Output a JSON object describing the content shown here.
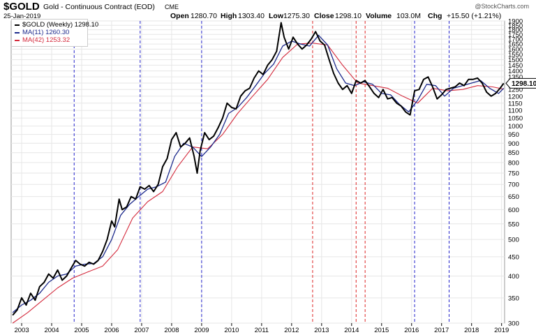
{
  "header": {
    "symbol": "$GOLD",
    "name": "Gold - Continuous Contract (EOD)",
    "exchange": "CME",
    "date": "25-Jan-2019",
    "watermark": "@StockCharts.com",
    "open_label": "Open",
    "open": "1280.70",
    "high_label": "High",
    "high": "1303.40",
    "low_label": "Low",
    "low": "1275.30",
    "close_label": "Close",
    "close": "1298.10",
    "volume_label": "Volume",
    "volume": "103.0M",
    "chg_label": "Chg",
    "chg": "+15.50 (+1.21%)"
  },
  "legend": {
    "price": "$GOLD (Weekly) 1298.10",
    "ma11": "MA(11) 1260.30",
    "ma42": "MA(42) 1253.32"
  },
  "last_price_tag": "1298.10",
  "colors": {
    "price": "#000000",
    "ma11": "#1c2a8c",
    "ma42": "#d42a3c",
    "vline_blue": "#2222cc",
    "vline_red": "#dd2222",
    "grid": "#e6e6e6"
  },
  "chart_data": {
    "type": "line",
    "scale": "log",
    "ylim": [
      300,
      1900
    ],
    "xlim": [
      2002.65,
      2019.1
    ],
    "y_ticks": [
      300,
      350,
      400,
      450,
      500,
      550,
      600,
      650,
      700,
      750,
      800,
      850,
      900,
      950,
      1000,
      1050,
      1100,
      1150,
      1200,
      1250,
      1300,
      1350,
      1400,
      1450,
      1500,
      1550,
      1600,
      1650,
      1700,
      1750,
      1800,
      1850,
      1900
    ],
    "x_ticks": [
      {
        "label": "2003",
        "x": 2003.0
      },
      {
        "label": "2004",
        "x": 2004.0
      },
      {
        "label": "2005",
        "x": 2005.0
      },
      {
        "label": "2006",
        "x": 2006.0
      },
      {
        "label": "2007",
        "x": 2007.0
      },
      {
        "label": "2008",
        "x": 2008.0
      },
      {
        "label": "2009",
        "x": 2009.0
      },
      {
        "label": "2010",
        "x": 2010.0
      },
      {
        "label": "2011",
        "x": 2011.0
      },
      {
        "label": "2012",
        "x": 2012.0
      },
      {
        "label": "2013",
        "x": 2013.0
      },
      {
        "label": "2014",
        "x": 2014.0
      },
      {
        "label": "2015",
        "x": 2015.0
      },
      {
        "label": "2016",
        "x": 2016.0
      },
      {
        "label": "2017",
        "x": 2017.0
      },
      {
        "label": "2018",
        "x": 2018.0
      },
      {
        "label": "2019",
        "x": 2019.0
      }
    ],
    "vlines_blue": [
      2004.75,
      2006.95,
      2009.0,
      2016.1,
      2017.25
    ],
    "vlines_red": [
      2012.7,
      2014.15,
      2014.45
    ],
    "series": [
      {
        "key": "price",
        "x": [
          2002.7,
          2002.85,
          2003.0,
          2003.15,
          2003.3,
          2003.45,
          2003.6,
          2003.75,
          2003.9,
          2004.05,
          2004.2,
          2004.35,
          2004.5,
          2004.65,
          2004.8,
          2004.95,
          2005.1,
          2005.25,
          2005.4,
          2005.55,
          2005.7,
          2005.85,
          2006.0,
          2006.1,
          2006.25,
          2006.35,
          2006.5,
          2006.65,
          2006.8,
          2006.95,
          2007.1,
          2007.25,
          2007.4,
          2007.55,
          2007.7,
          2007.85,
          2008.0,
          2008.15,
          2008.3,
          2008.45,
          2008.6,
          2008.75,
          2008.85,
          2008.95,
          2009.1,
          2009.25,
          2009.4,
          2009.55,
          2009.7,
          2009.85,
          2010.0,
          2010.15,
          2010.3,
          2010.45,
          2010.6,
          2010.75,
          2010.9,
          2011.05,
          2011.2,
          2011.35,
          2011.5,
          2011.65,
          2011.75,
          2011.9,
          2012.05,
          2012.2,
          2012.35,
          2012.5,
          2012.65,
          2012.8,
          2012.95,
          2013.1,
          2013.25,
          2013.4,
          2013.55,
          2013.7,
          2013.85,
          2014.0,
          2014.15,
          2014.3,
          2014.45,
          2014.6,
          2014.75,
          2014.9,
          2015.05,
          2015.2,
          2015.35,
          2015.5,
          2015.65,
          2015.8,
          2015.95,
          2016.1,
          2016.25,
          2016.4,
          2016.55,
          2016.7,
          2016.85,
          2017.0,
          2017.15,
          2017.3,
          2017.45,
          2017.6,
          2017.75,
          2017.9,
          2018.05,
          2018.2,
          2018.35,
          2018.5,
          2018.65,
          2018.8,
          2018.95,
          2019.07
        ],
        "values": [
          315,
          325,
          350,
          335,
          360,
          345,
          375,
          385,
          405,
          395,
          415,
          390,
          400,
          420,
          440,
          430,
          425,
          435,
          430,
          440,
          465,
          500,
          560,
          540,
          640,
          600,
          610,
          650,
          640,
          690,
          680,
          695,
          670,
          700,
          780,
          820,
          920,
          960,
          880,
          900,
          930,
          830,
          750,
          860,
          960,
          920,
          940,
          990,
          1050,
          1150,
          1120,
          1110,
          1200,
          1240,
          1260,
          1340,
          1400,
          1370,
          1450,
          1500,
          1580,
          1880,
          1720,
          1600,
          1720,
          1650,
          1600,
          1640,
          1700,
          1780,
          1680,
          1640,
          1500,
          1380,
          1300,
          1250,
          1280,
          1220,
          1320,
          1300,
          1320,
          1270,
          1220,
          1190,
          1250,
          1180,
          1190,
          1150,
          1130,
          1090,
          1070,
          1240,
          1250,
          1330,
          1350,
          1270,
          1180,
          1210,
          1250,
          1260,
          1270,
          1300,
          1280,
          1330,
          1330,
          1340,
          1300,
          1230,
          1200,
          1220,
          1260,
          1298
        ]
      },
      {
        "key": "ma11",
        "x": [
          2002.7,
          2003.0,
          2003.3,
          2003.6,
          2003.9,
          2004.2,
          2004.5,
          2004.8,
          2005.1,
          2005.4,
          2005.7,
          2006.0,
          2006.3,
          2006.6,
          2006.9,
          2007.2,
          2007.5,
          2007.8,
          2008.1,
          2008.4,
          2008.7,
          2009.0,
          2009.3,
          2009.6,
          2009.9,
          2010.2,
          2010.5,
          2010.8,
          2011.1,
          2011.4,
          2011.7,
          2012.0,
          2012.3,
          2012.6,
          2012.9,
          2013.2,
          2013.5,
          2013.8,
          2014.1,
          2014.4,
          2014.7,
          2015.0,
          2015.3,
          2015.6,
          2015.9,
          2016.2,
          2016.5,
          2016.8,
          2017.1,
          2017.4,
          2017.7,
          2018.0,
          2018.3,
          2018.6,
          2018.9,
          2019.07
        ],
        "values": [
          320,
          335,
          345,
          360,
          385,
          400,
          405,
          425,
          430,
          432,
          450,
          500,
          580,
          620,
          650,
          680,
          690,
          710,
          830,
          900,
          880,
          830,
          880,
          950,
          1080,
          1120,
          1190,
          1280,
          1380,
          1460,
          1630,
          1680,
          1650,
          1630,
          1740,
          1640,
          1420,
          1300,
          1280,
          1310,
          1290,
          1220,
          1210,
          1140,
          1090,
          1170,
          1290,
          1280,
          1200,
          1260,
          1280,
          1300,
          1320,
          1260,
          1220,
          1260
        ]
      },
      {
        "key": "ma42",
        "x": [
          2002.7,
          2003.2,
          2003.7,
          2004.2,
          2004.7,
          2005.2,
          2005.7,
          2006.2,
          2006.7,
          2007.2,
          2007.7,
          2008.2,
          2008.7,
          2009.2,
          2009.7,
          2010.2,
          2010.7,
          2011.2,
          2011.7,
          2012.2,
          2012.7,
          2013.2,
          2013.7,
          2014.2,
          2014.7,
          2015.2,
          2015.7,
          2016.2,
          2016.7,
          2017.2,
          2017.7,
          2018.2,
          2018.7,
          2019.07
        ],
        "values": [
          300,
          320,
          345,
          372,
          395,
          410,
          425,
          470,
          570,
          630,
          670,
          780,
          880,
          870,
          950,
          1080,
          1200,
          1330,
          1520,
          1650,
          1660,
          1640,
          1450,
          1300,
          1280,
          1260,
          1200,
          1150,
          1260,
          1240,
          1250,
          1280,
          1270,
          1253
        ]
      }
    ]
  }
}
